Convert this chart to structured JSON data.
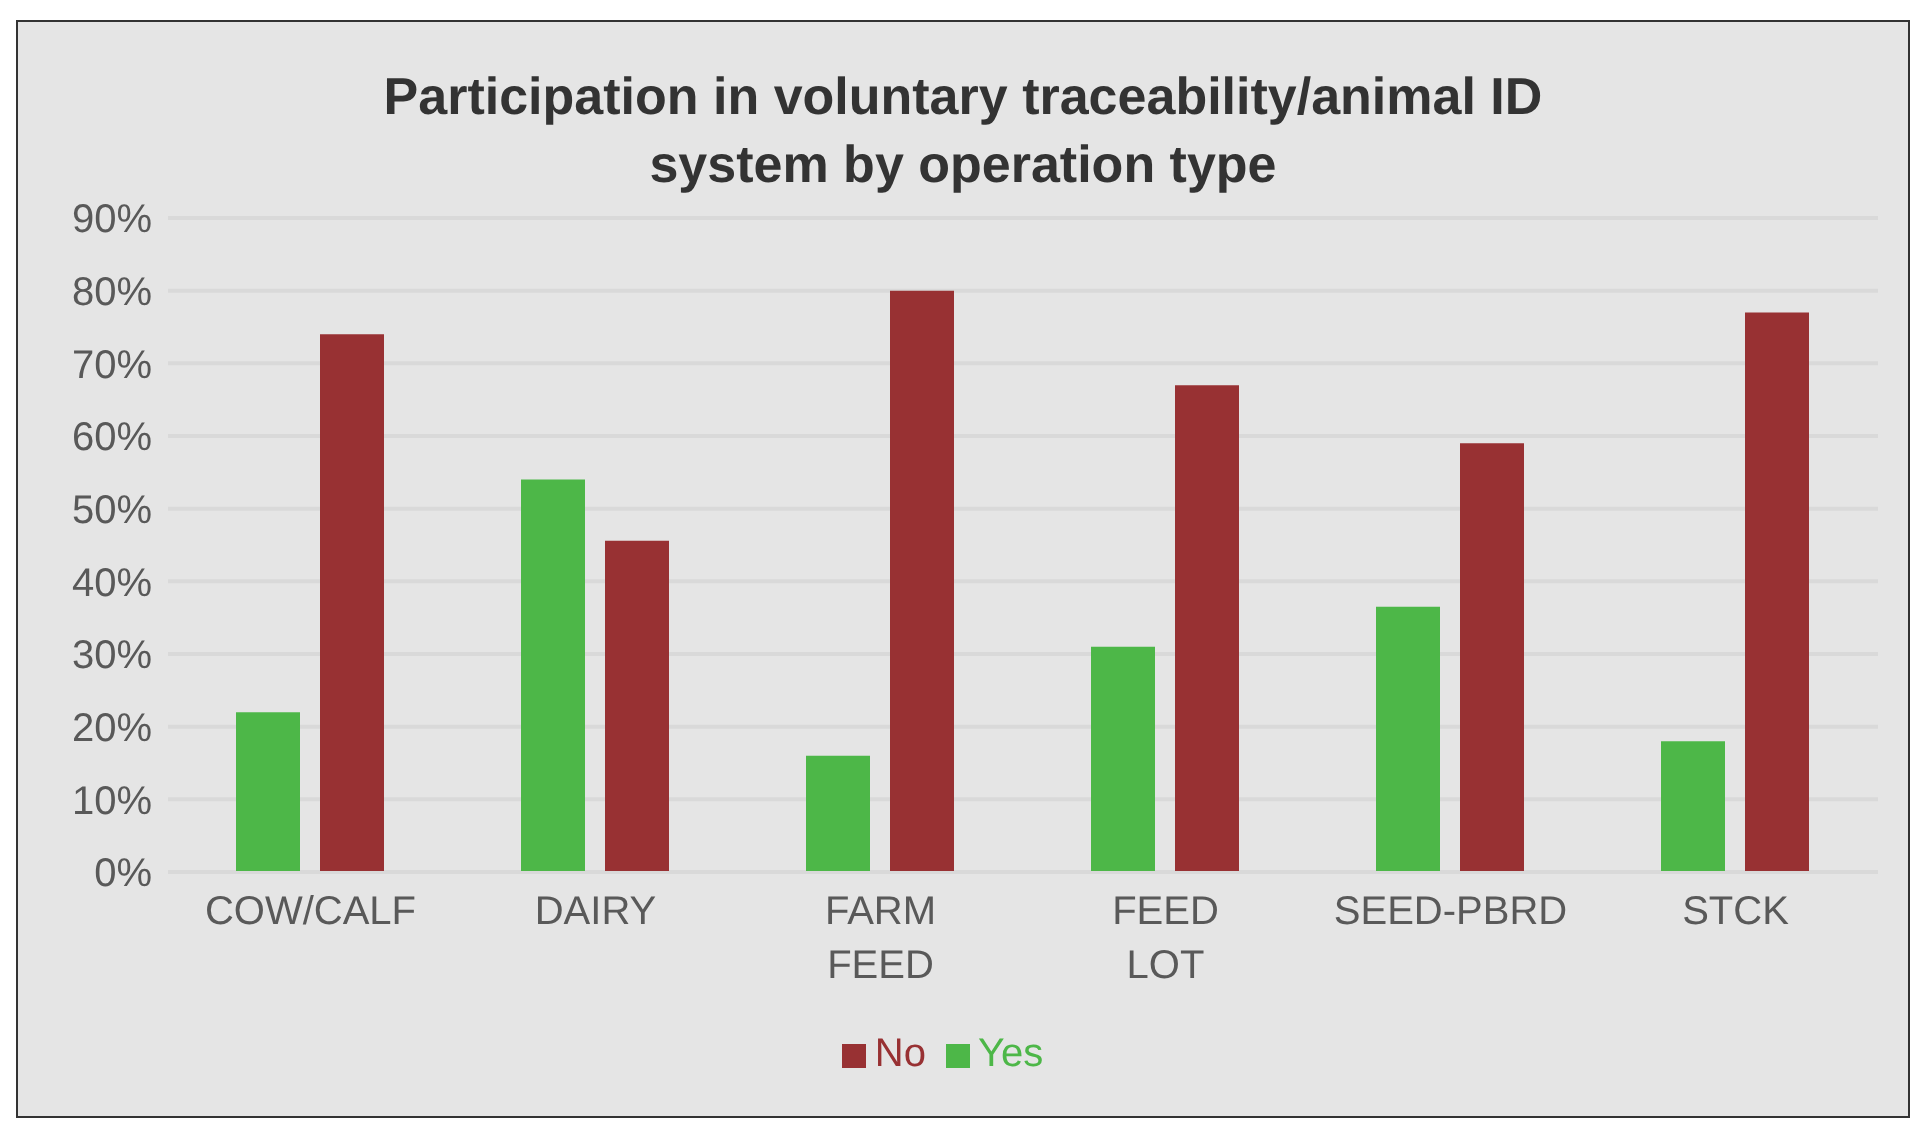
{
  "chart_data": {
    "type": "bar",
    "title": "Participation in voluntary traceability/animal ID system by operation type",
    "categories": [
      "COW/CALF",
      "DAIRY",
      "FARM FEED",
      "FEED LOT",
      "SEED-PBRD",
      "STCK"
    ],
    "series": [
      {
        "name": "Yes",
        "color": "#4db748",
        "values": [
          22,
          54,
          16,
          31,
          36.5,
          18
        ]
      },
      {
        "name": "No",
        "color": "#983133",
        "values": [
          74,
          45.6,
          80,
          67,
          59,
          77
        ]
      }
    ],
    "ylim": [
      0,
      90
    ],
    "yticks": [
      {
        "value": 0,
        "label": "0%"
      },
      {
        "value": 10,
        "label": "10%"
      },
      {
        "value": 20,
        "label": "20%"
      },
      {
        "value": 30,
        "label": "30%"
      },
      {
        "value": 40,
        "label": "40%"
      },
      {
        "value": 50,
        "label": "50%"
      },
      {
        "value": 60,
        "label": "60%"
      },
      {
        "value": 70,
        "label": "70%"
      },
      {
        "value": 80,
        "label": "80%"
      },
      {
        "value": 90,
        "label": "90%"
      }
    ],
    "grid": "y",
    "legend": "bottom"
  }
}
